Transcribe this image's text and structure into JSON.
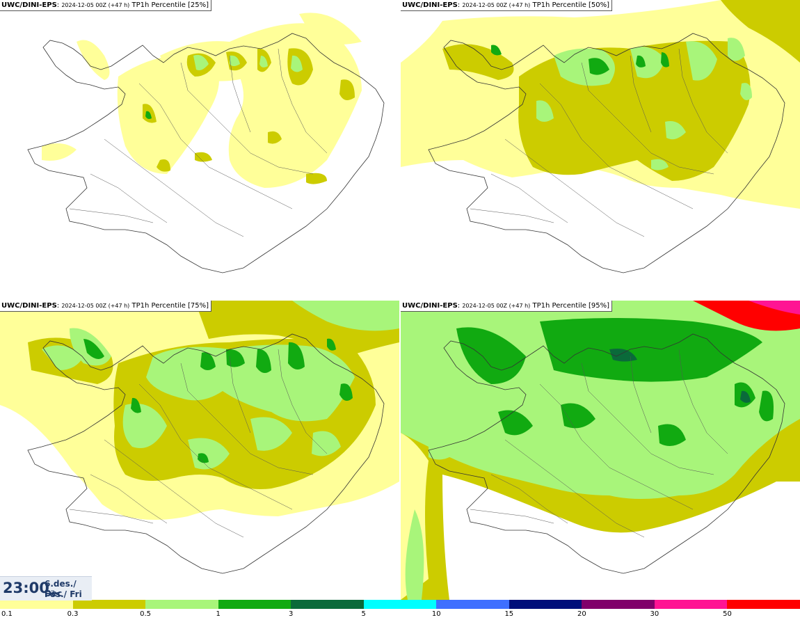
{
  "panels": [
    {
      "model": "UWC/DINI-EPS",
      "info": "2024-12-05 00Z (+47 h)",
      "product": "TP1h Percentile [25%]"
    },
    {
      "model": "UWC/DINI-EPS",
      "info": "2024-12-05 00Z (+47 h)",
      "product": "TP1h Percentile [50%]"
    },
    {
      "model": "UWC/DINI-EPS",
      "info": "2024-12-05 00Z (+47 h)",
      "product": "TP1h Percentile [75%]"
    },
    {
      "model": "UWC/DINI-EPS",
      "info": "2024-12-05 00Z (+47 h)",
      "product": "TP1h Percentile [95%]"
    }
  ],
  "valid_time": {
    "time": "23:00",
    "date": "6.des./ Dec",
    "day": "Fös./ Fri"
  },
  "legend": {
    "labels": [
      "0.1",
      "0.3",
      "0.5",
      "1",
      "3",
      "5",
      "10",
      "15",
      "20",
      "30",
      "50"
    ],
    "colors": [
      "#ffff99",
      "#cccc00",
      "#a8f57a",
      "#11aa11",
      "#0a6a3a",
      "#00ffff",
      "#3f6fff",
      "#000f7a",
      "#80006a",
      "#ff1493",
      "#ff0000"
    ]
  }
}
